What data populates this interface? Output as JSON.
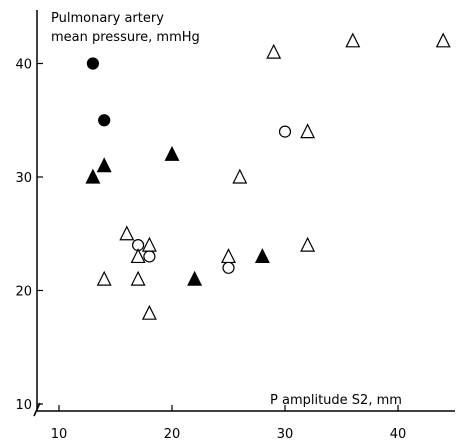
{
  "chart_data": {
    "type": "scatter",
    "ylabel_line1": "Pulmonary  artery",
    "ylabel_line2": "mean pressure, mmHg",
    "xlabel": "P amplitude S2, mm",
    "xlim": [
      8,
      45
    ],
    "ylim": [
      10,
      45
    ],
    "x_ticks": [
      10,
      20,
      30,
      40
    ],
    "y_ticks": [
      10,
      20,
      30,
      40
    ],
    "grid": false,
    "series": [
      {
        "marker": "filled-circle",
        "points": [
          [
            13,
            40
          ],
          [
            14,
            35
          ]
        ]
      },
      {
        "marker": "filled-triangle",
        "points": [
          [
            13,
            30
          ],
          [
            14,
            31
          ],
          [
            20,
            32
          ],
          [
            22,
            21
          ],
          [
            28,
            23
          ]
        ]
      },
      {
        "marker": "open-circle",
        "points": [
          [
            17,
            24
          ],
          [
            18,
            23
          ],
          [
            25,
            22
          ],
          [
            30,
            34
          ]
        ]
      },
      {
        "marker": "open-triangle",
        "points": [
          [
            14,
            21
          ],
          [
            16,
            25
          ],
          [
            17,
            23
          ],
          [
            17,
            21
          ],
          [
            18,
            24
          ],
          [
            18,
            18
          ],
          [
            25,
            23
          ],
          [
            26,
            30
          ],
          [
            29,
            41
          ],
          [
            32,
            34
          ],
          [
            32,
            24
          ],
          [
            36,
            42
          ],
          [
            44,
            42
          ]
        ]
      }
    ]
  }
}
